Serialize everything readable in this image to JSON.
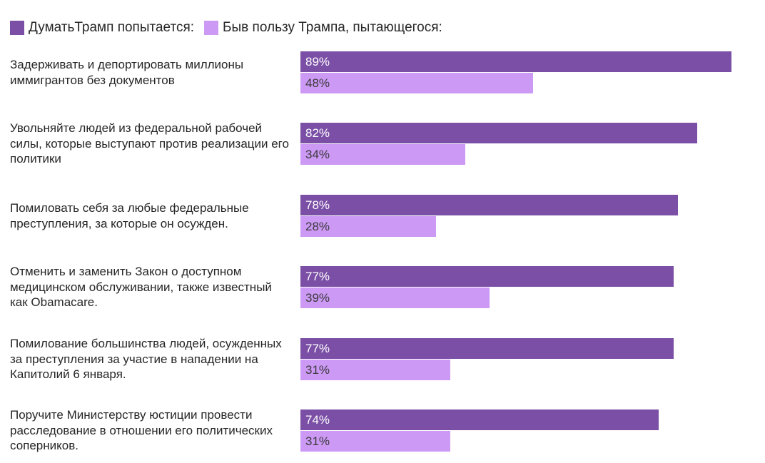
{
  "legend": {
    "series1": "ДуматьТрамп попытается:",
    "series2": "Быв пользу Трампа, пытающегося:"
  },
  "colors": {
    "series1": "#7b4fa6",
    "series2": "#cc99f5",
    "text": "#262626"
  },
  "chart_data": {
    "type": "bar",
    "orientation": "horizontal",
    "title": "",
    "xlabel": "",
    "ylabel": "",
    "xlim": [
      0,
      100
    ],
    "grid": false,
    "legend_position": "top-left",
    "categories": [
      "Задерживать и депортировать миллионы иммигрантов без документов",
      "Увольняйте людей из федеральной рабочей силы, которые выступают против реализации его политики",
      "Помиловать себя за любые федеральные преступления, за которые он осужден.",
      "Отменить и заменить Закон о доступном медицинском обслуживании, также известный как Obamacare.",
      "Помилование большинства людей, осужденных за преступления за участие в нападении на Капитолий 6 января.",
      "Поручите Министерству юстиции провести расследование в отношении его политических соперников."
    ],
    "series": [
      {
        "name": "ДуматьТрамп попытается:",
        "values": [
          89,
          82,
          78,
          77,
          77,
          74
        ],
        "labels": [
          "89%",
          "82%",
          "78%",
          "77%",
          "77%",
          "74%"
        ]
      },
      {
        "name": "Быв пользу Трампа, пытающегося:",
        "values": [
          48,
          34,
          28,
          39,
          31,
          31
        ],
        "labels": [
          "48%",
          "34%",
          "28%",
          "39%",
          "31%",
          "31%"
        ]
      }
    ]
  }
}
